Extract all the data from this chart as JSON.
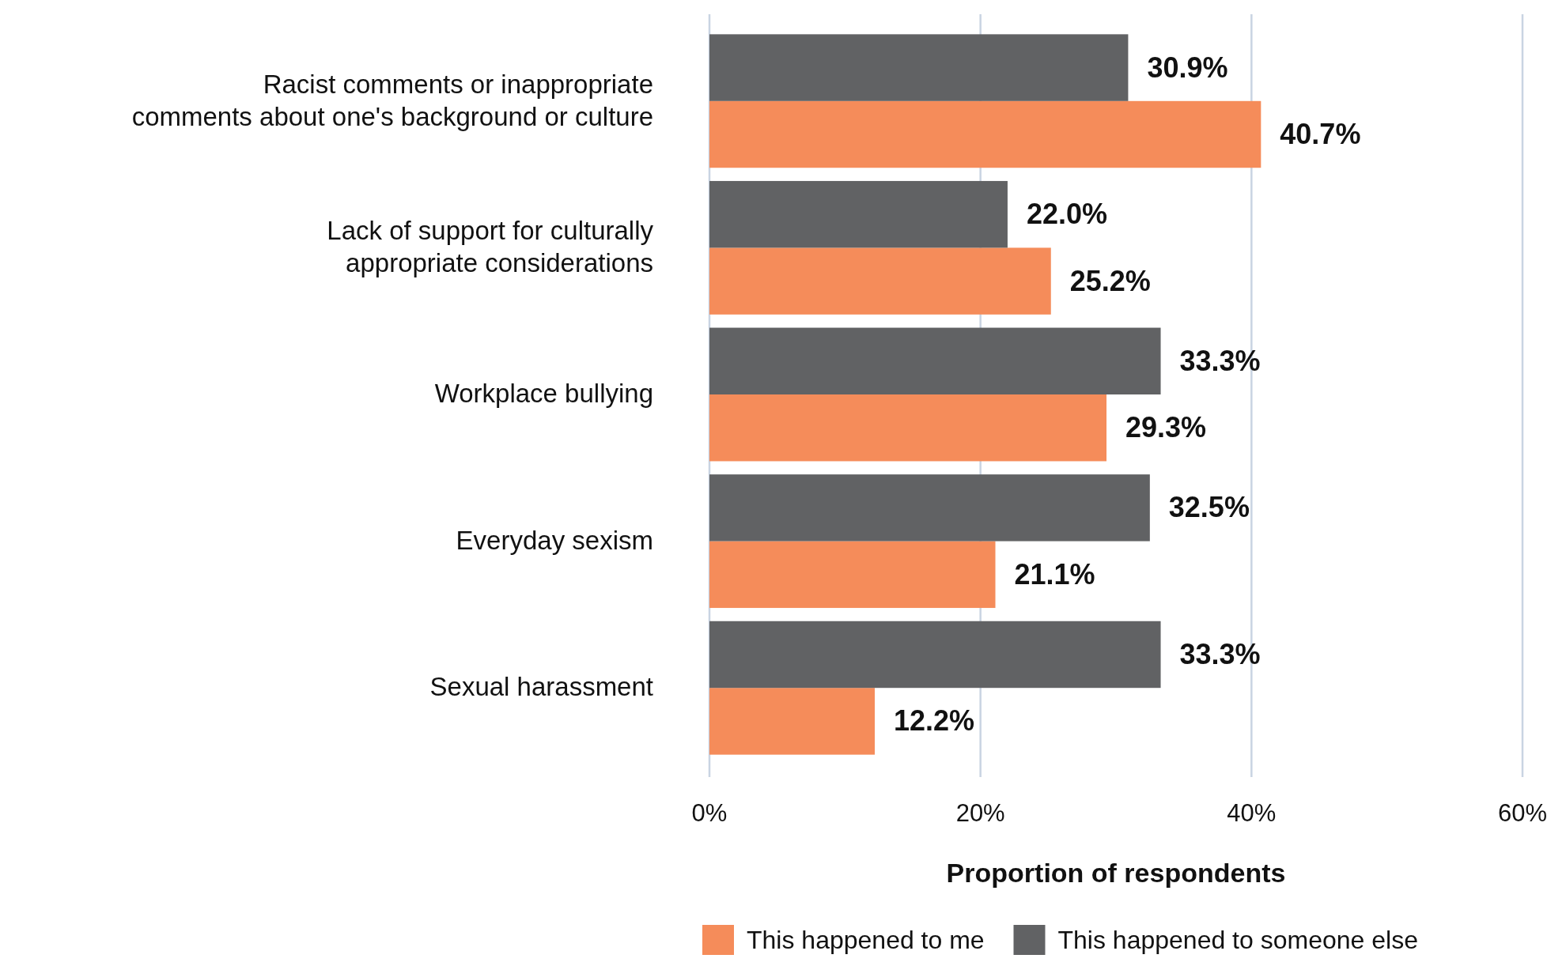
{
  "chart_data": {
    "type": "bar",
    "orientation": "horizontal",
    "xlabel": "Proportion of respondents",
    "categories": [
      "Racist comments or inappropriate comments about one's background or culture",
      "Lack of support for culturally appropriate considerations",
      "Workplace bullying",
      "Everyday sexism",
      "Sexual harassment"
    ],
    "series": [
      {
        "name": "This happened to me",
        "color": "#f58c5a",
        "values": [
          40.7,
          25.2,
          29.3,
          21.1,
          12.2
        ],
        "value_labels": [
          "40.7%",
          "25.2%",
          "29.3%",
          "21.1%",
          "12.2%"
        ]
      },
      {
        "name": "This happened to someone else",
        "color": "#616264",
        "values": [
          30.9,
          22.0,
          33.3,
          32.5,
          33.3
        ],
        "value_labels": [
          "30.9%",
          "22.0%",
          "33.3%",
          "32.5%",
          "33.3%"
        ]
      }
    ],
    "xlim": [
      0,
      60
    ],
    "xticks": [
      {
        "value": 0,
        "label": "0%"
      },
      {
        "value": 20,
        "label": "20%"
      },
      {
        "value": 40,
        "label": "40%"
      },
      {
        "value": 60,
        "label": "60%"
      }
    ],
    "grid": "x",
    "legend": "bottom"
  }
}
